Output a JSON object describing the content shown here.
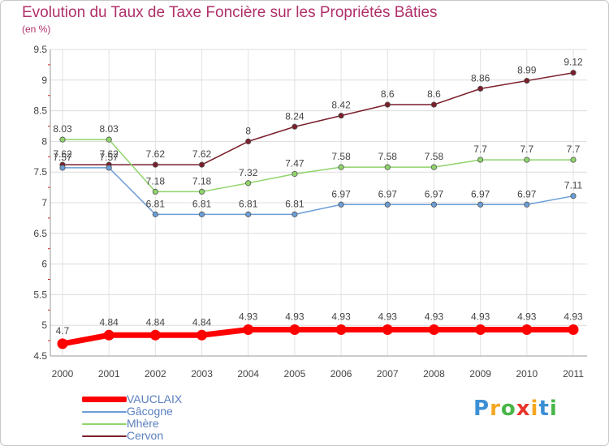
{
  "title": "Evolution du Taux de Taxe Foncière sur les Propriétés Bâties",
  "unit_label": "(en %)",
  "brand": {
    "letters": [
      "P",
      "r",
      "o",
      "x",
      "i",
      "t",
      "i"
    ],
    "colors": [
      "#3c8fd4",
      "#f5a623",
      "#48b648",
      "#e8362d",
      "#f5a623",
      "#3c8fd4",
      "#48b648"
    ]
  },
  "chart_data": {
    "type": "line",
    "title": "Evolution du Taux de Taxe Foncière sur les Propriétés Bâties",
    "ylabel": "(en %)",
    "xlabel": "",
    "x": [
      "2000",
      "2001",
      "2002",
      "2003",
      "2004",
      "2005",
      "2006",
      "2007",
      "2008",
      "2009",
      "2010",
      "2011"
    ],
    "ylim": [
      4.5,
      9.5
    ],
    "yticks": [
      "4.5",
      "5",
      "5.5",
      "6",
      "6.5",
      "7",
      "7.5",
      "8",
      "8.5",
      "9",
      "9.5"
    ],
    "grid": true,
    "legend_position": "bottom-left",
    "series": [
      {
        "name": "VAUCLAIX",
        "color": "#ff0000",
        "values": [
          4.7,
          4.84,
          4.84,
          4.84,
          4.93,
          4.93,
          4.93,
          4.93,
          4.93,
          4.93,
          4.93,
          4.93
        ],
        "labels": [
          "4.7",
          "4.84",
          "4.84",
          "4.84",
          "4.93",
          "4.93",
          "4.93",
          "4.93",
          "4.93",
          "4.93",
          "4.93",
          "4.93"
        ]
      },
      {
        "name": "Gâcogne",
        "color": "#6b9dd6",
        "values": [
          7.57,
          7.57,
          6.81,
          6.81,
          6.81,
          6.81,
          6.97,
          6.97,
          6.97,
          6.97,
          6.97,
          7.11
        ],
        "labels": [
          "7.57",
          "7.57",
          "6.81",
          "6.81",
          "6.81",
          "6.81",
          "6.97",
          "6.97",
          "6.97",
          "6.97",
          "6.97",
          "7.11"
        ]
      },
      {
        "name": "Mhère",
        "color": "#8fd46a",
        "values": [
          8.03,
          8.03,
          7.18,
          7.18,
          7.32,
          7.47,
          7.58,
          7.58,
          7.58,
          7.7,
          7.7,
          7.7
        ],
        "labels": [
          "8.03",
          "8.03",
          "7.18",
          "7.18",
          "7.32",
          "7.47",
          "7.58",
          "7.58",
          "7.58",
          "7.7",
          "7.7",
          "7.7"
        ]
      },
      {
        "name": "Cervon",
        "color": "#7a1f2b",
        "values": [
          7.62,
          7.62,
          7.62,
          7.62,
          8.0,
          8.24,
          8.42,
          8.6,
          8.6,
          8.86,
          8.99,
          9.12
        ],
        "labels": [
          "7.62",
          "7.62",
          "7.62",
          "7.62",
          "8",
          "8.24",
          "8.42",
          "8.6",
          "8.6",
          "8.86",
          "8.99",
          "9.12"
        ]
      }
    ]
  }
}
